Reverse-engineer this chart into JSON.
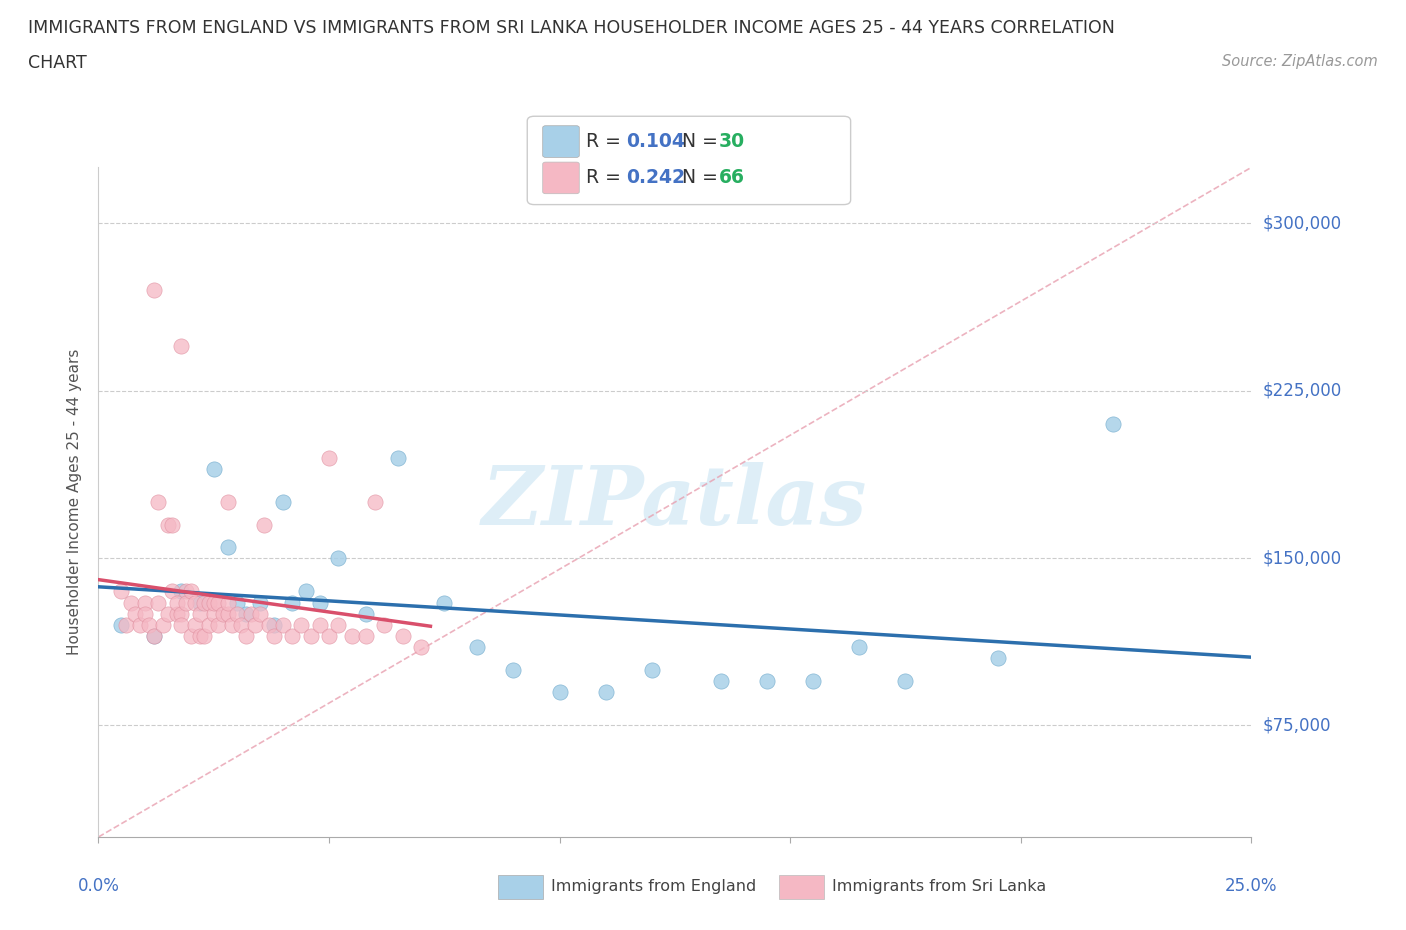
{
  "title_line1": "IMMIGRANTS FROM ENGLAND VS IMMIGRANTS FROM SRI LANKA HOUSEHOLDER INCOME AGES 25 - 44 YEARS CORRELATION",
  "title_line2": "CHART",
  "source": "Source: ZipAtlas.com",
  "ylabel": "Householder Income Ages 25 - 44 years",
  "xlim": [
    0.0,
    0.25
  ],
  "ylim": [
    25000,
    325000
  ],
  "ytick_positions": [
    75000,
    150000,
    225000,
    300000
  ],
  "ytick_labels": [
    "$75,000",
    "$150,000",
    "$225,000",
    "$300,000"
  ],
  "england_color": "#a8d0e8",
  "srilanka_color": "#f5b8c4",
  "england_trend_color": "#2c6fad",
  "srilanka_trend_color": "#d94f6b",
  "diagonal_color": "#e8a0b0",
  "watermark_text": "ZIPatlas",
  "watermark_color": "#d0e8f5",
  "legend_R1": "0.104",
  "legend_N1": "30",
  "legend_R2": "0.242",
  "legend_N2": "66",
  "R_color": "#4472c4",
  "N_color": "#27ae60",
  "england_x": [
    0.005,
    0.012,
    0.018,
    0.022,
    0.025,
    0.028,
    0.03,
    0.032,
    0.035,
    0.038,
    0.04,
    0.042,
    0.045,
    0.048,
    0.052,
    0.058,
    0.065,
    0.075,
    0.082,
    0.09,
    0.1,
    0.11,
    0.12,
    0.135,
    0.145,
    0.155,
    0.165,
    0.175,
    0.195,
    0.22
  ],
  "england_y": [
    120000,
    115000,
    135000,
    130000,
    190000,
    155000,
    130000,
    125000,
    130000,
    120000,
    175000,
    130000,
    135000,
    130000,
    150000,
    125000,
    195000,
    130000,
    110000,
    100000,
    90000,
    90000,
    100000,
    95000,
    95000,
    95000,
    110000,
    95000,
    105000,
    210000
  ],
  "srilanka_x": [
    0.005,
    0.006,
    0.007,
    0.008,
    0.009,
    0.01,
    0.01,
    0.011,
    0.012,
    0.013,
    0.013,
    0.014,
    0.015,
    0.015,
    0.016,
    0.016,
    0.017,
    0.017,
    0.018,
    0.018,
    0.019,
    0.019,
    0.02,
    0.02,
    0.021,
    0.021,
    0.022,
    0.022,
    0.023,
    0.023,
    0.024,
    0.024,
    0.025,
    0.025,
    0.026,
    0.026,
    0.027,
    0.028,
    0.028,
    0.029,
    0.03,
    0.031,
    0.032,
    0.033,
    0.034,
    0.035,
    0.037,
    0.038,
    0.04,
    0.042,
    0.044,
    0.046,
    0.048,
    0.05,
    0.052,
    0.055,
    0.058,
    0.062,
    0.066,
    0.07,
    0.012,
    0.018,
    0.028,
    0.036,
    0.05,
    0.06
  ],
  "srilanka_y": [
    135000,
    120000,
    130000,
    125000,
    120000,
    130000,
    125000,
    120000,
    115000,
    130000,
    175000,
    120000,
    165000,
    125000,
    135000,
    165000,
    125000,
    130000,
    125000,
    120000,
    135000,
    130000,
    115000,
    135000,
    120000,
    130000,
    115000,
    125000,
    130000,
    115000,
    130000,
    120000,
    125000,
    130000,
    120000,
    130000,
    125000,
    125000,
    130000,
    120000,
    125000,
    120000,
    115000,
    125000,
    120000,
    125000,
    120000,
    115000,
    120000,
    115000,
    120000,
    115000,
    120000,
    115000,
    120000,
    115000,
    115000,
    120000,
    115000,
    110000,
    270000,
    245000,
    175000,
    165000,
    195000,
    175000
  ]
}
